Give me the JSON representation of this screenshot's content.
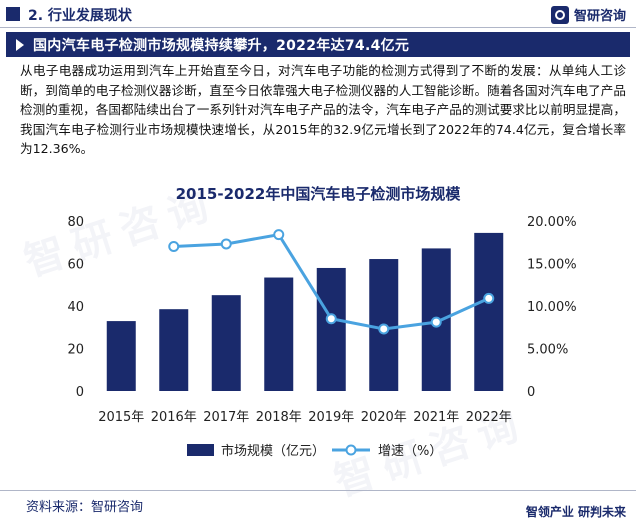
{
  "header": {
    "section_label": "2. 行业发展现状",
    "logo_text": "智研咨询"
  },
  "banner": {
    "title": "国内汽车电子检测市场规模持续攀升，2022年达74.4亿元"
  },
  "paragraph": "从电子电器成功运用到汽车上开始直至今日，对汽车电子功能的检测方式得到了不断的发展：从单纯人工诊断，到简单的电子检测仪器诊断，直至今日依靠强大电子检测仪器的人工智能诊断。随着各国对汽车电了产品检测的重视，各国都陆续出台了一系列针对汽车电子产品的法令，汽车电子产品的测试要求比以前明显提高，我国汽车电子检测行业市场规模快速增长，从2015年的32.9亿元增长到了2022年的74.4亿元，复合增长率为12.36%。",
  "chart_data": {
    "type": "bar+line",
    "title": "2015-2022年中国汽车电子检测市场规模",
    "categories": [
      "2015年",
      "2016年",
      "2017年",
      "2018年",
      "2019年",
      "2020年",
      "2021年",
      "2022年"
    ],
    "series": [
      {
        "name": "市场规模（亿元）",
        "type": "bar",
        "axis": "left",
        "color": "#1a2a6c",
        "values": [
          32.9,
          38.5,
          45.1,
          53.4,
          57.9,
          62.1,
          67.1,
          74.4
        ]
      },
      {
        "name": "增速（%）",
        "type": "line",
        "axis": "right",
        "color": "#4aa3e0",
        "values": [
          null,
          17.0,
          17.3,
          18.4,
          8.5,
          7.3,
          8.1,
          10.9
        ]
      }
    ],
    "left_axis": {
      "ylim": [
        0,
        80
      ],
      "ticks": [
        "0",
        "20",
        "40",
        "60",
        "80"
      ]
    },
    "right_axis": {
      "ylim": [
        0,
        20
      ],
      "ticks": [
        "0",
        "5.00%",
        "10.00%",
        "15.00%",
        "20.00%"
      ]
    },
    "grid": false,
    "legend_position": "bottom"
  },
  "footer": {
    "source": "资料来源：智研咨询",
    "brand": "智领产业  研判未来"
  },
  "watermark": "智研咨询"
}
